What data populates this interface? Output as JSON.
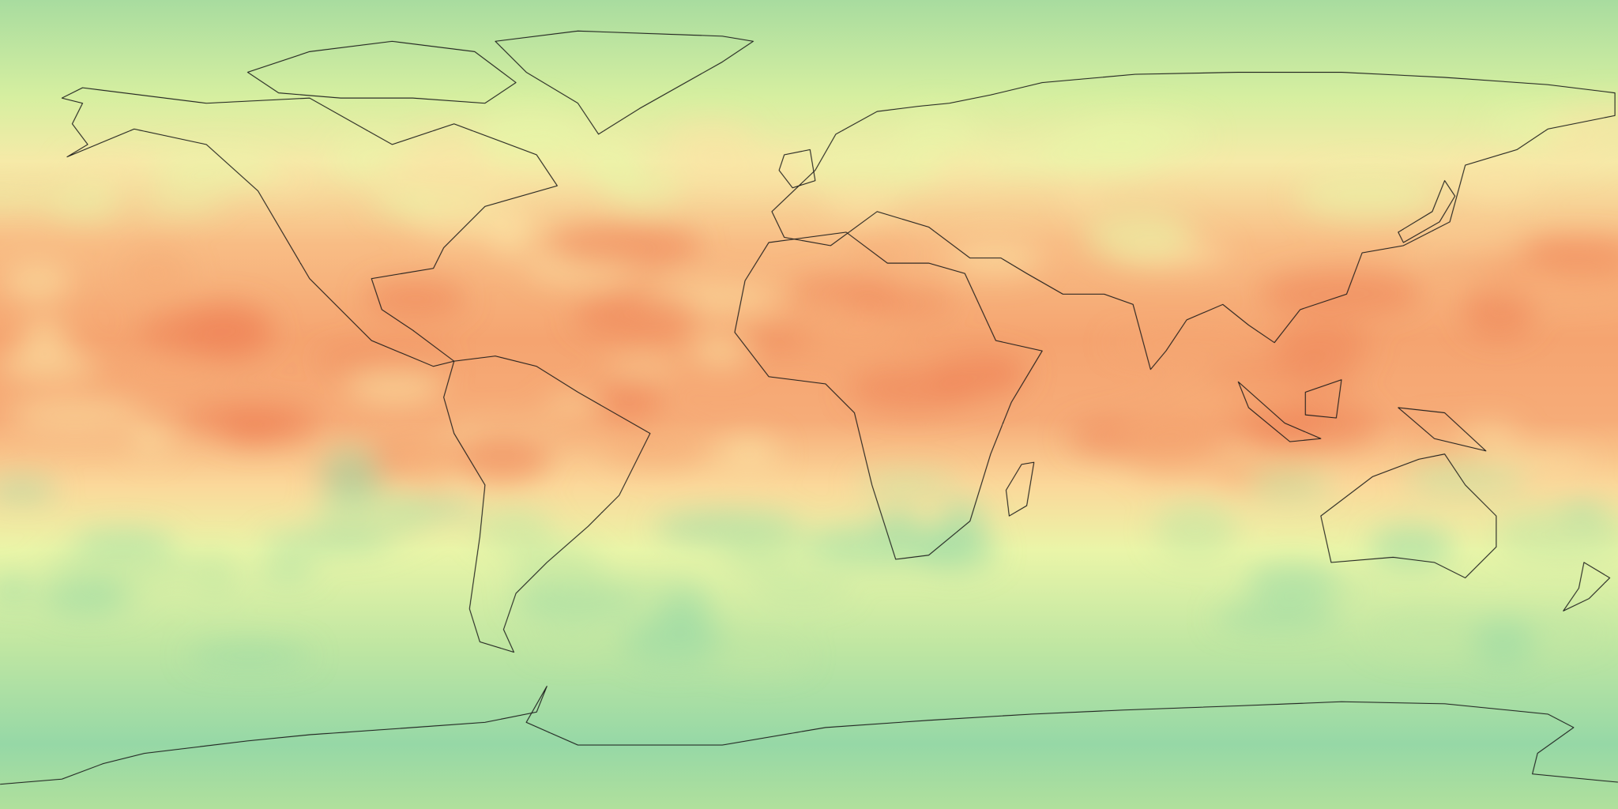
{
  "map": {
    "projection": "equirectangular",
    "coastlines": true,
    "colormap": {
      "polar": "#98d8a6",
      "high_latitude": "#bfe6a2",
      "mid_latitude": "#e8f5a8",
      "subtropics": "#fbe3a4",
      "tropics": "#f6ab75",
      "peak": "#ee8256"
    },
    "coastline_color": "#1a1a1a"
  }
}
